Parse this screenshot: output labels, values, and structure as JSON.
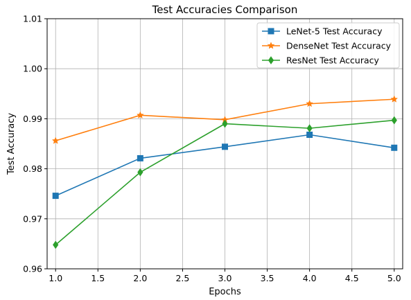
{
  "chart_data": {
    "type": "line",
    "title": "Test Accuracies Comparison",
    "xlabel": "Epochs",
    "ylabel": "Test Accuracy",
    "xlim": [
      0.9,
      5.1
    ],
    "ylim": [
      0.96,
      1.01
    ],
    "x_ticks": [
      "1.0",
      "1.5",
      "2.0",
      "2.5",
      "3.0",
      "3.5",
      "4.0",
      "4.5",
      "5.0"
    ],
    "y_ticks": [
      "0.96",
      "0.97",
      "0.98",
      "0.99",
      "1.00",
      "1.01"
    ],
    "grid": true,
    "legend_position": "top-right",
    "x": [
      1,
      2,
      3,
      4,
      5
    ],
    "series": [
      {
        "name": "LeNet-5 Test Accuracy",
        "color": "#1f77b4",
        "marker": "square",
        "values": [
          0.9746,
          0.9821,
          0.9844,
          0.9868,
          0.9842
        ]
      },
      {
        "name": "DenseNet Test Accuracy",
        "color": "#ff7f0e",
        "marker": "star",
        "values": [
          0.9856,
          0.9907,
          0.9898,
          0.993,
          0.9939
        ]
      },
      {
        "name": "ResNet Test Accuracy",
        "color": "#2ca02c",
        "marker": "diamond",
        "values": [
          0.9648,
          0.9793,
          0.989,
          0.9881,
          0.9897
        ]
      }
    ]
  }
}
